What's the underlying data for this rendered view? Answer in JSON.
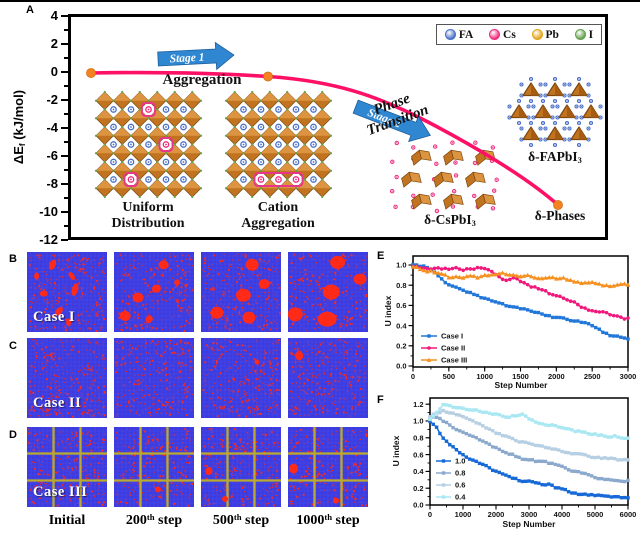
{
  "figure": {
    "panel_labels": {
      "a": "A",
      "b": "B",
      "c": "C",
      "d": "D",
      "e": "E",
      "f": "F"
    },
    "panel_a": {
      "y_axis": {
        "label_main": "ΔE",
        "label_sub": "f",
        "label_unit": " (kJ/mol)",
        "ticks": [
          4,
          2,
          0,
          -2,
          -4,
          -6,
          -8,
          -10,
          -12
        ]
      },
      "stage1_label": "Stage 1",
      "stage2_label": "Stage 2",
      "aggregation_label": "Aggregation",
      "phase_line1": "Phase",
      "phase_line2": "Transition",
      "uniform_line1": "Uniform",
      "uniform_line2": "Distribution",
      "cation_line1": "Cation",
      "cation_line2": "Aggregation",
      "cspbi3_main": "δ-CsPbI",
      "cspbi3_sub": "3",
      "fapbi3_main": "δ-FAPbI",
      "fapbi3_sub": "3",
      "phases_label": "δ-Phases",
      "legend": [
        {
          "label": "FA",
          "color": "#4a6fc8"
        },
        {
          "label": "Cs",
          "color": "#ee2a7b"
        },
        {
          "label": "Pb",
          "color": "#e2a41c"
        },
        {
          "label": "I",
          "color": "#63a04e"
        }
      ],
      "colors": {
        "curve": "#fe1066",
        "marker": "#f58220",
        "arrow": "#2f87d2",
        "octahedron": "#c1731f"
      }
    },
    "sim_panels": {
      "rows": [
        {
          "case_label": "Case I",
          "grid": false,
          "frames": [
            {
              "seed": 101,
              "speckles": 250,
              "blobs": [
                [
                  32,
                  16,
                  2.5,
                  5,
                  25
                ],
                [
                  56,
                  30,
                  2,
                  4,
                  -35
                ],
                [
                  60,
                  47,
                  2.5,
                  6,
                  15
                ],
                [
                  21,
                  52,
                  3.5,
                  2.5,
                  0
                ],
                [
                  40,
                  74,
                  2.5,
                  4.5,
                  40
                ],
                [
                  52,
                  88,
                  2,
                  3.5,
                  0
                ],
                [
                  12,
                  30,
                  2,
                  3,
                  0
                ]
              ]
            },
            {
              "seed": 202,
              "speckles": 240,
              "blobs": [
                [
                  62,
                  16,
                  4.5,
                  4,
                  0
                ],
                [
                  30,
                  57,
                  5,
                  4.5,
                  0
                ],
                [
                  53,
                  46,
                  4,
                  3.5,
                  0
                ],
                [
                  14,
                  80,
                  5,
                  4.5,
                  0
                ],
                [
                  44,
                  84,
                  3,
                  3.5,
                  30
                ],
                [
                  79,
                  38,
                  2.5,
                  2.5,
                  0
                ]
              ]
            },
            {
              "seed": 303,
              "speckles": 230,
              "blobs": [
                [
                  64,
                  16,
                  6,
                  5.5,
                  0
                ],
                [
                  79,
                  40,
                  5,
                  4.5,
                  0
                ],
                [
                  53,
                  54,
                  7,
                  6,
                  0
                ],
                [
                  20,
                  76,
                  6,
                  5.5,
                  0
                ],
                [
                  60,
                  82,
                  6,
                  5.5,
                  0
                ]
              ]
            },
            {
              "seed": 404,
              "speckles": 220,
              "blobs": [
                [
                  62,
                  13,
                  7,
                  6,
                  0
                ],
                [
                  90,
                  34,
                  6,
                  5,
                  0
                ],
                [
                  54,
                  50,
                  8,
                  7,
                  0
                ],
                [
                  9,
                  78,
                  7,
                  6.5,
                  0
                ],
                [
                  49,
                  84,
                  9,
                  7,
                  0
                ]
              ]
            }
          ]
        },
        {
          "case_label": "Case II",
          "grid": false,
          "frames": [
            {
              "seed": 505,
              "speckles": 270,
              "blobs": []
            },
            {
              "seed": 606,
              "speckles": 270,
              "blobs": []
            },
            {
              "seed": 707,
              "speckles": 265,
              "blobs": [
                [
                  70,
                  30,
                  2,
                  2,
                  0
                ]
              ]
            },
            {
              "seed": 808,
              "speckles": 265,
              "blobs": [
                [
                  14,
                  22,
                  3.5,
                  4,
                  0
                ]
              ]
            }
          ]
        },
        {
          "case_label": "Case III",
          "grid": true,
          "frames": [
            {
              "seed": 909,
              "speckles": 250,
              "blobs": []
            },
            {
              "seed": 1010,
              "speckles": 250,
              "blobs": [
                [
                  55,
                  78,
                  2.5,
                  2.5,
                  0
                ]
              ]
            },
            {
              "seed": 1111,
              "speckles": 245,
              "blobs": [
                [
                  10,
                  55,
                  3,
                  3.5,
                  0
                ],
                [
                  30,
                  90,
                  2.5,
                  2.5,
                  0
                ]
              ]
            },
            {
              "seed": 1212,
              "speckles": 245,
              "blobs": [
                [
                  7,
                  52,
                  4,
                  4.5,
                  0
                ],
                [
                  60,
                  92,
                  2.5,
                  2.5,
                  0
                ]
              ]
            }
          ]
        }
      ],
      "col_labels": [
        {
          "num": "Initial",
          "sup": "",
          "rest": ""
        },
        {
          "num": "200",
          "sup": "th",
          "rest": " step"
        },
        {
          "num": "500",
          "sup": "th",
          "rest": " step"
        },
        {
          "num": "1000",
          "sup": "th",
          "rest": " step"
        }
      ],
      "colors": {
        "bg": "#3b3be0",
        "speck": "#ff2a18",
        "grid_line": "#b9ab2e"
      }
    }
  },
  "chart_data": [
    {
      "id": "E",
      "type": "line",
      "title": "",
      "xlabel": "Step Number",
      "ylabel": "U index",
      "xlim": [
        0,
        3000
      ],
      "ylim": [
        0.0,
        1.05
      ],
      "xticks": [
        0,
        500,
        1000,
        1500,
        2000,
        2500,
        3000
      ],
      "yticks": [
        0.0,
        0.2,
        0.4,
        0.6,
        0.8,
        1.0
      ],
      "x_step": 100,
      "grid": false,
      "legend_position": "lower-left",
      "series": [
        {
          "name": "Case I",
          "color": "#2176d9",
          "marker": "square",
          "values": [
            1.0,
            0.99,
            0.97,
            0.93,
            0.86,
            0.81,
            0.78,
            0.75,
            0.73,
            0.7,
            0.67,
            0.65,
            0.62,
            0.6,
            0.59,
            0.57,
            0.55,
            0.53,
            0.52,
            0.5,
            0.48,
            0.47,
            0.45,
            0.45,
            0.43,
            0.4,
            0.36,
            0.32,
            0.3,
            0.28,
            0.27
          ]
        },
        {
          "name": "Case II",
          "color": "#f1187c",
          "marker": "circle",
          "values": [
            0.99,
            0.97,
            0.96,
            0.97,
            0.96,
            0.96,
            0.97,
            0.95,
            0.96,
            0.97,
            0.96,
            0.93,
            0.88,
            0.85,
            0.87,
            0.84,
            0.8,
            0.78,
            0.75,
            0.72,
            0.69,
            0.67,
            0.64,
            0.61,
            0.57,
            0.55,
            0.53,
            0.53,
            0.5,
            0.48,
            0.47
          ]
        },
        {
          "name": "Case III",
          "color": "#f59122",
          "marker": "triangle",
          "values": [
            0.98,
            0.96,
            0.94,
            0.93,
            0.91,
            0.88,
            0.88,
            0.87,
            0.89,
            0.88,
            0.9,
            0.91,
            0.92,
            0.91,
            0.9,
            0.89,
            0.9,
            0.88,
            0.87,
            0.88,
            0.86,
            0.87,
            0.85,
            0.83,
            0.82,
            0.83,
            0.81,
            0.8,
            0.79,
            0.81,
            0.8
          ]
        }
      ]
    },
    {
      "id": "F",
      "type": "line",
      "title": "",
      "xlabel": "Step Number",
      "ylabel": "U index",
      "xlim": [
        0,
        6000
      ],
      "ylim": [
        0.0,
        1.25
      ],
      "xticks": [
        0,
        1000,
        2000,
        3000,
        4000,
        5000,
        6000
      ],
      "yticks": [
        0.0,
        0.2,
        0.4,
        0.6,
        0.8,
        1.0,
        1.2
      ],
      "x_step": 200,
      "grid": false,
      "legend_position": "lower-left",
      "series": [
        {
          "name": "1.0",
          "color": "#1669d6",
          "marker": "square",
          "values": [
            1.0,
            0.92,
            0.8,
            0.72,
            0.66,
            0.6,
            0.55,
            0.52,
            0.48,
            0.44,
            0.4,
            0.37,
            0.34,
            0.31,
            0.28,
            0.28,
            0.26,
            0.24,
            0.25,
            0.21,
            0.19,
            0.16,
            0.14,
            0.13,
            0.12,
            0.11,
            0.11,
            0.1,
            0.1,
            0.09,
            0.09
          ]
        },
        {
          "name": "0.8",
          "color": "#8aa9cc",
          "marker": "square",
          "values": [
            1.03,
            1.05,
            1.0,
            0.95,
            0.9,
            0.87,
            0.83,
            0.8,
            0.76,
            0.72,
            0.68,
            0.64,
            0.61,
            0.58,
            0.55,
            0.54,
            0.52,
            0.52,
            0.5,
            0.48,
            0.46,
            0.42,
            0.4,
            0.38,
            0.36,
            0.33,
            0.31,
            0.3,
            0.29,
            0.28,
            0.29
          ]
        },
        {
          "name": "0.6",
          "color": "#b7cfe3",
          "marker": "square",
          "values": [
            1.05,
            1.1,
            1.12,
            1.1,
            1.08,
            1.05,
            1.02,
            0.98,
            0.94,
            0.9,
            0.86,
            0.83,
            0.81,
            0.77,
            0.75,
            0.73,
            0.71,
            0.7,
            0.68,
            0.66,
            0.64,
            0.62,
            0.61,
            0.6,
            0.58,
            0.57,
            0.56,
            0.55,
            0.55,
            0.54,
            0.54
          ]
        },
        {
          "name": "0.4",
          "color": "#a9e7f2",
          "marker": "square",
          "values": [
            1.02,
            1.1,
            1.19,
            1.18,
            1.16,
            1.15,
            1.13,
            1.13,
            1.1,
            1.09,
            1.08,
            1.06,
            1.05,
            1.06,
            1.08,
            1.02,
            0.99,
            0.97,
            0.95,
            0.94,
            0.92,
            0.9,
            0.88,
            0.87,
            0.85,
            0.84,
            0.83,
            0.81,
            0.82,
            0.8,
            0.79
          ]
        }
      ]
    }
  ]
}
